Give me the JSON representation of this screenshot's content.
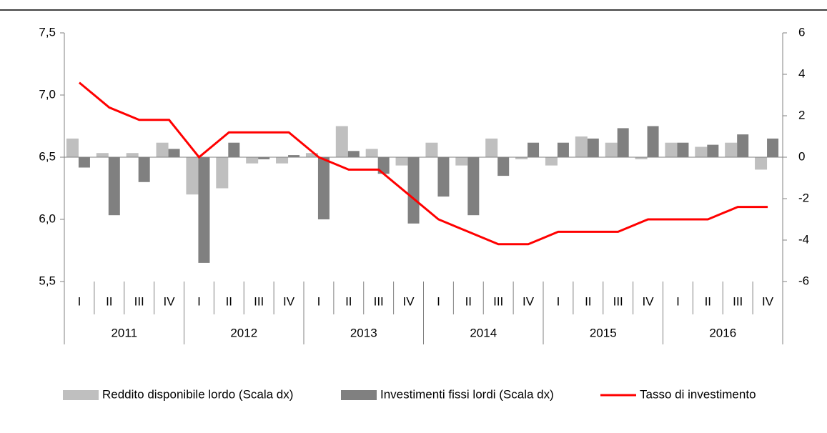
{
  "chart_data": {
    "type": "bar-line",
    "categories": [
      "I",
      "II",
      "III",
      "IV",
      "I",
      "II",
      "III",
      "IV",
      "I",
      "II",
      "III",
      "IV",
      "I",
      "II",
      "III",
      "IV",
      "I",
      "II",
      "III",
      "IV",
      "I",
      "II",
      "III",
      "IV"
    ],
    "years": [
      "2011",
      "2012",
      "2013",
      "2014",
      "2015",
      "2016"
    ],
    "series": [
      {
        "name": "Reddito disponibile lordo (Scala dx)",
        "type": "bar",
        "axis": "y2",
        "color": "#bfbfbf",
        "values": [
          0.9,
          0.2,
          0.2,
          0.7,
          -1.8,
          -1.5,
          -0.3,
          -0.3,
          0.2,
          1.5,
          0.4,
          -0.4,
          0.7,
          -0.4,
          0.9,
          -0.1,
          -0.4,
          1.0,
          0.7,
          -0.1,
          0.7,
          0.5,
          0.7,
          -0.6
        ]
      },
      {
        "name": "Investimenti fissi lordi (Scala dx)",
        "type": "bar",
        "axis": "y2",
        "color": "#808080",
        "values": [
          -0.5,
          -2.8,
          -1.2,
          0.4,
          -5.1,
          0.7,
          -0.1,
          0.1,
          -3.0,
          0.3,
          -0.8,
          -3.2,
          -1.9,
          -2.8,
          -0.9,
          0.7,
          0.7,
          0.9,
          1.4,
          1.5,
          0.7,
          0.6,
          1.1,
          0.9
        ]
      },
      {
        "name": "Tasso di investimento",
        "type": "line",
        "color": "#ff0000",
        "values": [
          7.1,
          6.9,
          6.8,
          6.8,
          6.5,
          6.7,
          6.7,
          6.7,
          6.5,
          6.4,
          6.4,
          6.2,
          6.0,
          5.9,
          5.8,
          5.8,
          5.9,
          5.9,
          5.9,
          6.0,
          6.0,
          6.0,
          6.1,
          6.1
        ]
      }
    ],
    "ylim": [
      5.5,
      7.5
    ],
    "yticks": [
      {
        "value": 5.5,
        "label": "5,5"
      },
      {
        "value": 6.0,
        "label": "6,0"
      },
      {
        "value": 6.5,
        "label": "6,5"
      },
      {
        "value": 7.0,
        "label": "7,0"
      },
      {
        "value": 7.5,
        "label": "7,5"
      }
    ],
    "y2lim": [
      -6,
      6
    ],
    "y2ticks": [
      -6,
      -4,
      -2,
      0,
      2,
      4,
      6
    ],
    "legend": "bottom"
  }
}
